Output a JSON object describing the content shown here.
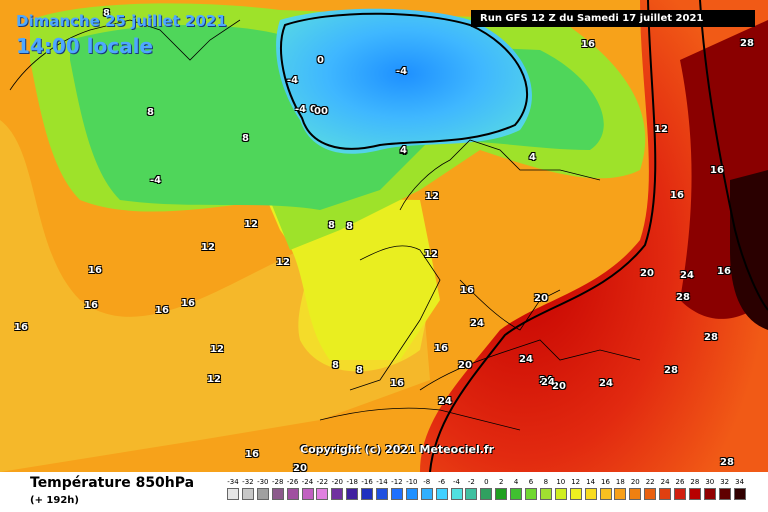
{
  "header": {
    "date_line": "Dimanche 25 juillet 2021",
    "time_line": "14:00 locale",
    "run_info": "Run GFS 12 Z du Samedi 17 juillet 2021"
  },
  "footer": {
    "copyright": "Copyright (c) 2021 Meteociel.fr"
  },
  "legend": {
    "title": "Température 850hPa",
    "subtitle": "(+ 192h)",
    "ticks": [
      "-34",
      "-32",
      "-30",
      "-28",
      "-26",
      "-24",
      "-22",
      "-20",
      "-18",
      "-16",
      "-14",
      "-12",
      "-10",
      "-8",
      "-6",
      "-4",
      "-2",
      "0",
      "2",
      "4",
      "6",
      "8",
      "10",
      "12",
      "14",
      "16",
      "18",
      "20",
      "22",
      "24",
      "26",
      "28",
      "30",
      "32",
      "34"
    ],
    "colors": [
      "#e6e6e6",
      "#c8c8c8",
      "#a0a0a0",
      "#8c5a8c",
      "#a050a0",
      "#c060c0",
      "#e080e0",
      "#7030a0",
      "#4020a0",
      "#2030c0",
      "#2050e0",
      "#2070ff",
      "#1e90ff",
      "#30b0ff",
      "#40d0ff",
      "#50e0e0",
      "#40c0a0",
      "#30a060",
      "#20a020",
      "#40c030",
      "#70d830",
      "#a0e030",
      "#d0ee20",
      "#eef020",
      "#f8dc20",
      "#f8c020",
      "#f8a018",
      "#f08010",
      "#e86010",
      "#e04010",
      "#d02010",
      "#b80000",
      "#900000",
      "#600000",
      "#300000"
    ]
  },
  "isotherm_labels": [
    {
      "t": "8"
    },
    {
      "t": "-4"
    },
    {
      "t": "0"
    },
    {
      "t": "-4"
    },
    {
      "t": "0"
    },
    {
      "t": "-4"
    },
    {
      "t": "00"
    },
    {
      "t": "8"
    },
    {
      "t": "8"
    },
    {
      "t": "4"
    },
    {
      "t": "4"
    },
    {
      "t": "8"
    },
    {
      "t": "12"
    },
    {
      "t": "12"
    },
    {
      "t": "12"
    },
    {
      "t": "12"
    },
    {
      "t": "16"
    },
    {
      "t": "16"
    },
    {
      "t": "16"
    },
    {
      "t": "16"
    },
    {
      "t": "16"
    },
    {
      "t": "12"
    },
    {
      "t": "12"
    },
    {
      "t": "8"
    },
    {
      "t": "8"
    },
    {
      "t": "16"
    },
    {
      "t": "20"
    },
    {
      "t": "24"
    },
    {
      "t": "24"
    },
    {
      "t": "24"
    },
    {
      "t": "28"
    },
    {
      "t": "28"
    },
    {
      "t": "24"
    },
    {
      "t": "20"
    },
    {
      "t": "16"
    },
    {
      "t": "16"
    },
    {
      "t": "16"
    },
    {
      "t": "12"
    },
    {
      "t": "16"
    },
    {
      "t": "20"
    },
    {
      "t": "20"
    },
    {
      "t": "24"
    },
    {
      "t": "24"
    },
    {
      "t": "28"
    },
    {
      "t": "28"
    },
    {
      "t": "28"
    },
    {
      "t": "16"
    },
    {
      "t": "16"
    },
    {
      "t": "20"
    },
    {
      "t": "24"
    },
    {
      "t": "16"
    },
    {
      "t": "4"
    },
    {
      "t": "-4"
    },
    {
      "t": "8"
    },
    {
      "t": "12"
    }
  ]
}
